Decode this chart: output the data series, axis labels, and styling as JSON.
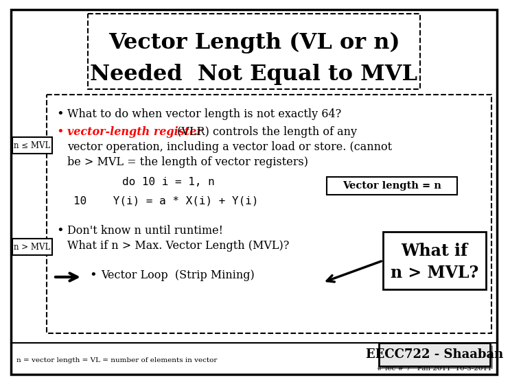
{
  "title_line1": "Vector Length (VL or n)",
  "title_line2": "Needed  Not Equal to MVL",
  "bg_color": "#ffffff",
  "bullet1": "What to do when vector length is not exactly 64?",
  "bullet2_red": "vector-length register",
  "bullet2_cont": " (VLR) controls the length of any",
  "bullet2_line2": "vector operation, including a vector load or store. (cannot",
  "bullet2_line3": "be > MVL = the length of vector registers)",
  "code_line1": "do 10 i = 1, n",
  "code_line2": "10    Y(i) = a * X(i) + Y(i)",
  "vl_box_text": "Vector length = n",
  "bullet3": "Don't know n until runtime!",
  "bullet4": "What if n > Max. Vector Length (MVL)?",
  "bullet5": "Vector Loop  (Strip Mining)",
  "whatif_line1": "What if",
  "whatif_line2": "n > MVL?",
  "n_leq_mvl": "n ≤ MVL",
  "n_gt_mvl": "n > MVL",
  "footer_left": "n = vector length = VL = number of elements in vector",
  "footer_right": "EECC722 - Shaaban",
  "footer_right2": "# lec # 7   Fall 2011  10-3-2011"
}
